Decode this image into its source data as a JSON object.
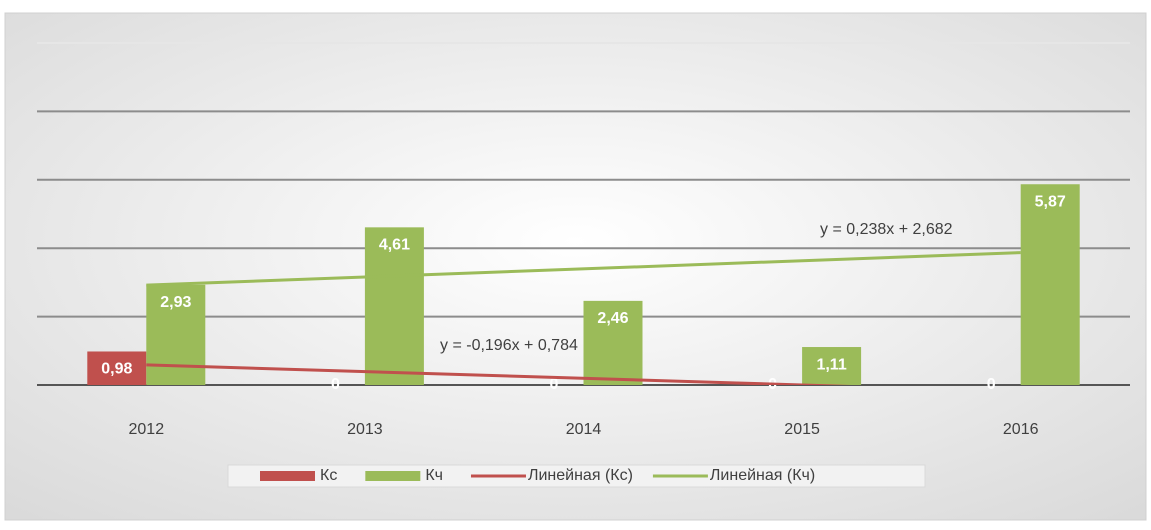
{
  "chart_data": {
    "type": "bar",
    "categories": [
      "2012",
      "2013",
      "2014",
      "2015",
      "2016"
    ],
    "series": [
      {
        "name": "Кс",
        "color": "#c0504d",
        "values": [
          0.98,
          0,
          0,
          0,
          0
        ],
        "value_labels": [
          "0,98",
          "0",
          "0",
          "0",
          "0"
        ]
      },
      {
        "name": "Кч",
        "color": "#9bbb59",
        "values": [
          2.93,
          4.61,
          2.46,
          1.11,
          5.87
        ],
        "value_labels": [
          "2,93",
          "4,61",
          "2,46",
          "1,11",
          "5,87"
        ]
      }
    ],
    "trendlines": [
      {
        "name": "Линейная (Кс)",
        "color": "#c0504d",
        "slope": -0.196,
        "intercept": 0.784,
        "equation": "y = -0,196x + 0,784"
      },
      {
        "name": "Линейная (Кч)",
        "color": "#9bbb59",
        "slope": 0.238,
        "intercept": 2.682,
        "equation": "y = 0,238x + 2,682"
      }
    ],
    "ylim": [
      0,
      10
    ],
    "yticks": [
      0,
      2,
      4,
      6,
      8,
      10
    ],
    "grid": true,
    "legend": "bottom"
  }
}
